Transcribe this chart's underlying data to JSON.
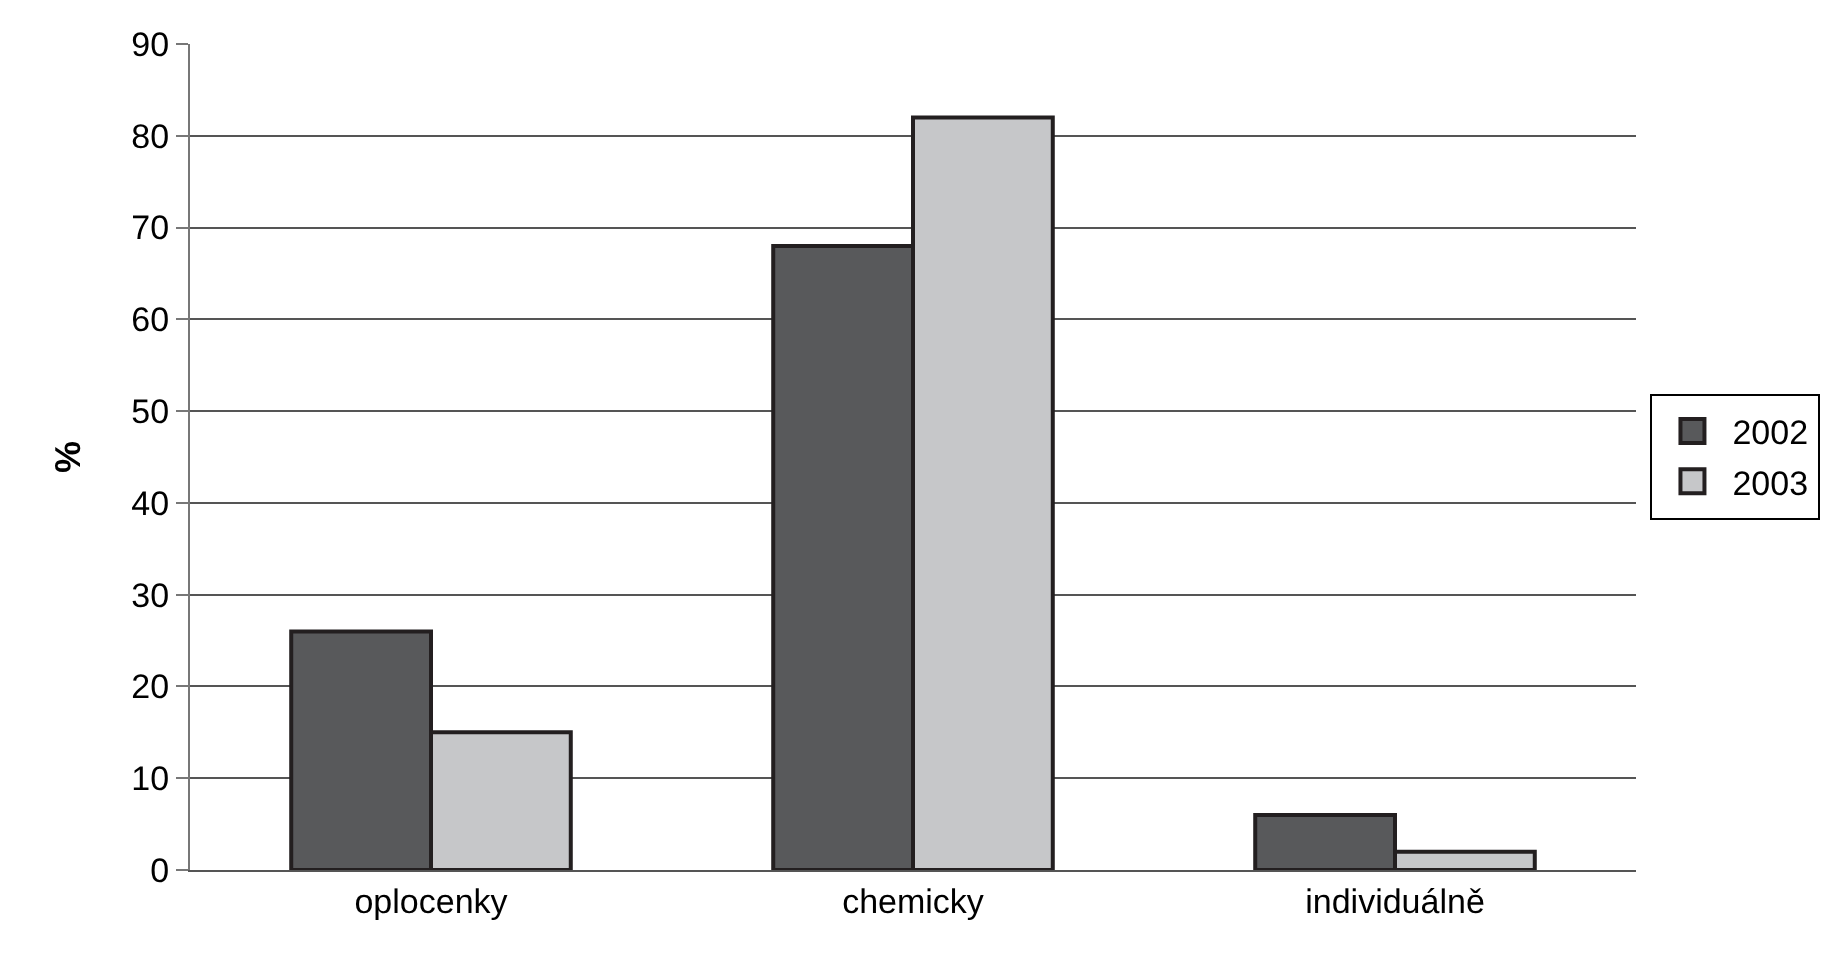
{
  "chart_data": {
    "type": "bar",
    "ylabel": "%",
    "categories": [
      "oplocenky",
      "chemicky",
      "individuálně"
    ],
    "series": [
      {
        "name": "2002",
        "color": "#58595b",
        "values": [
          26,
          68,
          6
        ]
      },
      {
        "name": "2003",
        "color": "#c6c7c9",
        "values": [
          15,
          82,
          2
        ]
      }
    ],
    "ylim": [
      0,
      90
    ],
    "yticks": [
      0,
      10,
      20,
      30,
      40,
      50,
      60,
      70,
      80,
      90
    ],
    "grid": "y",
    "legend": "right"
  }
}
